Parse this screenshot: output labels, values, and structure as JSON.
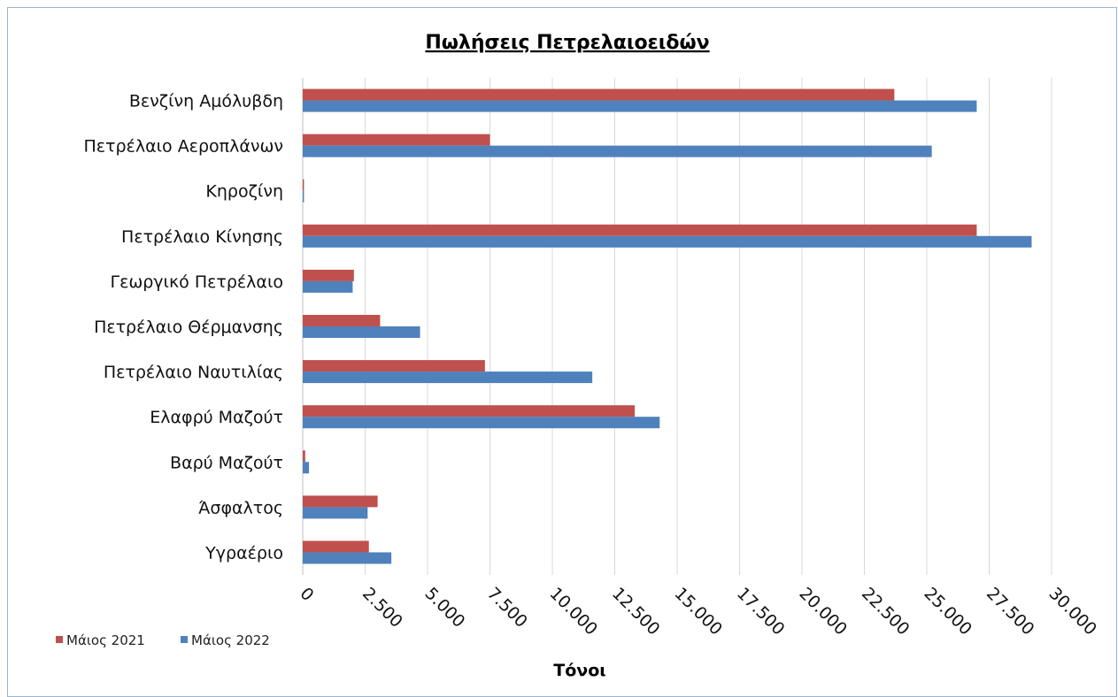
{
  "chart_data": {
    "type": "bar",
    "orientation": "horizontal",
    "title": "Πωλήσεις Πετρελαιοειδών",
    "xlabel": "Τόνοι",
    "ylabel": "",
    "xlim": [
      0,
      30000
    ],
    "tick_values": [
      0,
      2500,
      5000,
      7500,
      10000,
      12500,
      15000,
      17500,
      20000,
      22500,
      25000,
      27500,
      30000
    ],
    "tick_labels": [
      "0",
      "2.500",
      "5.000",
      "7.500",
      "10.000",
      "12.500",
      "15.000",
      "17.500",
      "20.000",
      "22.500",
      "25.000",
      "27.500",
      "30.000"
    ],
    "grid": true,
    "legend_position": "bottom-left",
    "categories": [
      "Βενζίνη Αμόλυβδη",
      "Πετρέλαιο Αεροπλάνων",
      "Κηροζίνη",
      "Πετρέλαιο Κίνησης",
      "Γεωργικό Πετρέλαιο",
      "Πετρέλαιο Θέρμανσης",
      "Πετρέλαιο Ναυτιλίας",
      "Ελαφρύ Μαζούτ",
      "Βαρύ Μαζούτ",
      "Άσφαλτος",
      "Υγραέριο"
    ],
    "series": [
      {
        "name": "Μάιος 2021",
        "color": "#c0504d",
        "values": [
          23700,
          7500,
          50,
          27000,
          2050,
          3100,
          7300,
          13300,
          100,
          3000,
          2650
        ]
      },
      {
        "name": "Μάιος 2022",
        "color": "#4f81bd",
        "values": [
          27000,
          25200,
          50,
          29200,
          2000,
          4700,
          11600,
          14300,
          250,
          2600,
          3550
        ]
      }
    ]
  }
}
